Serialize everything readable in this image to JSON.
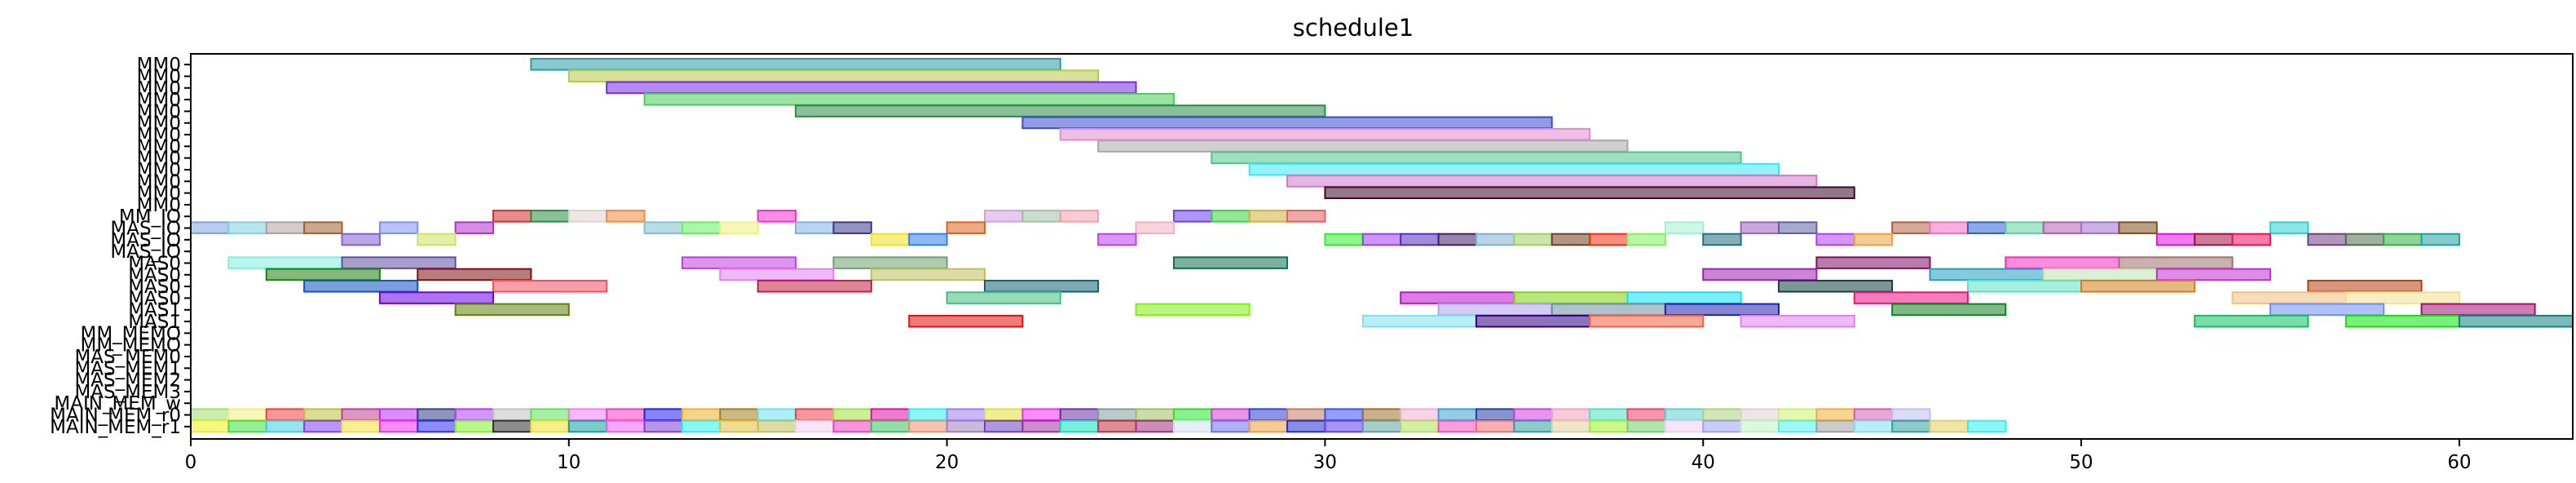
{
  "chart_data": {
    "type": "gantt",
    "title": "schedule1",
    "xlabel": "",
    "ylabel": "",
    "xlim": [
      0,
      63
    ],
    "xticks": [
      0,
      10,
      20,
      30,
      40,
      50,
      60
    ],
    "grid": false,
    "legend": "none",
    "rows": [
      "MM0",
      "MM0",
      "MM0",
      "MM0",
      "MM0",
      "MM0",
      "MM0",
      "MM0",
      "MM0",
      "MM0",
      "MM0",
      "MM0",
      "MM0",
      "MM_IO",
      "MAS_IO",
      "MAS_IO",
      "MAS_IO",
      "MAS0",
      "MAS0",
      "MAS0",
      "MAS0",
      "MAS1",
      "MAS1",
      "MM_MEMO",
      "MM_MEMO",
      "MAS_MEM0",
      "MAS_MEM1",
      "MAS_MEM2",
      "MAS_MEM3",
      "MAIN_MEM_w",
      "MAIN_MEM_r0",
      "MAIN_MEM_r1"
    ],
    "bars": [
      {
        "row": 0,
        "start": 9,
        "end": 23,
        "color": "#2a9aa6"
      },
      {
        "row": 1,
        "start": 10,
        "end": 24,
        "color": "#b8c84a"
      },
      {
        "row": 2,
        "start": 11,
        "end": 25,
        "color": "#7a2be0"
      },
      {
        "row": 3,
        "start": 12,
        "end": 26,
        "color": "#4ccc5c"
      },
      {
        "row": 4,
        "start": 16,
        "end": 30,
        "color": "#2a8a46"
      },
      {
        "row": 5,
        "start": 22,
        "end": 36,
        "color": "#3a4acc"
      },
      {
        "row": 6,
        "start": 23,
        "end": 37,
        "color": "#e08ad0"
      },
      {
        "row": 7,
        "start": 24,
        "end": 38,
        "color": "#a8a8a8"
      },
      {
        "row": 8,
        "start": 27,
        "end": 41,
        "color": "#4cc48a"
      },
      {
        "row": 9,
        "start": 28,
        "end": 42,
        "color": "#3ae8f0"
      },
      {
        "row": 10,
        "start": 29,
        "end": 43,
        "color": "#d07ac8"
      },
      {
        "row": 11,
        "start": 30,
        "end": 44,
        "color": "#3a0a2a"
      },
      {
        "row": 13,
        "start": 8,
        "end": 9,
        "color": "#d03030"
      },
      {
        "row": 13,
        "start": 9,
        "end": 10,
        "color": "#2a8a46"
      },
      {
        "row": 13,
        "start": 10,
        "end": 11,
        "color": "#e0d0d0"
      },
      {
        "row": 13,
        "start": 11,
        "end": 12,
        "color": "#f08a40"
      },
      {
        "row": 13,
        "start": 15,
        "end": 16,
        "color": "#f030d0"
      },
      {
        "row": 13,
        "start": 21,
        "end": 22,
        "color": "#d0a0e0"
      },
      {
        "row": 13,
        "start": 22,
        "end": 23,
        "color": "#a0c0a0"
      },
      {
        "row": 13,
        "start": 23,
        "end": 24,
        "color": "#f0a0b0"
      },
      {
        "row": 13,
        "start": 26,
        "end": 27,
        "color": "#6a40f0"
      },
      {
        "row": 13,
        "start": 27,
        "end": 28,
        "color": "#40d040"
      },
      {
        "row": 13,
        "start": 28,
        "end": 29,
        "color": "#d0b040"
      },
      {
        "row": 13,
        "start": 29,
        "end": 30,
        "color": "#e06060"
      },
      {
        "row": 14,
        "start": 0,
        "end": 1,
        "color": "#80a0e0"
      },
      {
        "row": 14,
        "start": 1,
        "end": 2,
        "color": "#80d0e0"
      },
      {
        "row": 14,
        "start": 2,
        "end": 3,
        "color": "#b0a0a0"
      },
      {
        "row": 14,
        "start": 3,
        "end": 4,
        "color": "#a06030"
      },
      {
        "row": 14,
        "start": 5,
        "end": 6,
        "color": "#8090f0"
      },
      {
        "row": 14,
        "start": 7,
        "end": 8,
        "color": "#b030d0"
      },
      {
        "row": 14,
        "start": 12,
        "end": 13,
        "color": "#80c0d0"
      },
      {
        "row": 14,
        "start": 13,
        "end": 14,
        "color": "#60f060"
      },
      {
        "row": 14,
        "start": 14,
        "end": 15,
        "color": "#f0f080"
      },
      {
        "row": 14,
        "start": 16,
        "end": 17,
        "color": "#80b0e0"
      },
      {
        "row": 14,
        "start": 17,
        "end": 18,
        "color": "#3a3a8a"
      },
      {
        "row": 14,
        "start": 20,
        "end": 21,
        "color": "#e06020"
      },
      {
        "row": 14,
        "start": 25,
        "end": 26,
        "color": "#f0b0c0"
      },
      {
        "row": 14,
        "start": 39,
        "end": 40,
        "color": "#a0f0d0"
      },
      {
        "row": 14,
        "start": 41,
        "end": 42,
        "color": "#a060c0"
      },
      {
        "row": 14,
        "start": 42,
        "end": 43,
        "color": "#6060a0"
      },
      {
        "row": 14,
        "start": 45,
        "end": 46,
        "color": "#b06040"
      },
      {
        "row": 14,
        "start": 46,
        "end": 47,
        "color": "#f070c0"
      },
      {
        "row": 14,
        "start": 47,
        "end": 48,
        "color": "#3060d0"
      },
      {
        "row": 14,
        "start": 48,
        "end": 49,
        "color": "#60d0a0"
      },
      {
        "row": 14,
        "start": 49,
        "end": 50,
        "color": "#b060b0"
      },
      {
        "row": 14,
        "start": 50,
        "end": 51,
        "color": "#a070d0"
      },
      {
        "row": 14,
        "start": 51,
        "end": 52,
        "color": "#805020"
      },
      {
        "row": 14,
        "start": 55,
        "end": 56,
        "color": "#30d0d0"
      },
      {
        "row": 15,
        "start": 4,
        "end": 5,
        "color": "#8060d0"
      },
      {
        "row": 15,
        "start": 6,
        "end": 7,
        "color": "#d0e060"
      },
      {
        "row": 15,
        "start": 18,
        "end": 19,
        "color": "#f0e020"
      },
      {
        "row": 15,
        "start": 19,
        "end": 20,
        "color": "#3080f0"
      },
      {
        "row": 15,
        "start": 24,
        "end": 25,
        "color": "#c040f0"
      },
      {
        "row": 15,
        "start": 30,
        "end": 31,
        "color": "#30f030"
      },
      {
        "row": 15,
        "start": 31,
        "end": 32,
        "color": "#a040f0"
      },
      {
        "row": 15,
        "start": 32,
        "end": 33,
        "color": "#5030c0"
      },
      {
        "row": 15,
        "start": 33,
        "end": 34,
        "color": "#402060"
      },
      {
        "row": 15,
        "start": 34,
        "end": 35,
        "color": "#80b0d0"
      },
      {
        "row": 15,
        "start": 35,
        "end": 36,
        "color": "#a0d060"
      },
      {
        "row": 15,
        "start": 36,
        "end": 37,
        "color": "#704020"
      },
      {
        "row": 15,
        "start": 37,
        "end": 38,
        "color": "#f03010"
      },
      {
        "row": 15,
        "start": 38,
        "end": 39,
        "color": "#80f060"
      },
      {
        "row": 15,
        "start": 40,
        "end": 41,
        "color": "#207080"
      },
      {
        "row": 15,
        "start": 43,
        "end": 44,
        "color": "#b040f0"
      },
      {
        "row": 15,
        "start": 44,
        "end": 45,
        "color": "#f0a040"
      },
      {
        "row": 15,
        "start": 52,
        "end": 53,
        "color": "#e010e0"
      },
      {
        "row": 15,
        "start": 53,
        "end": 54,
        "color": "#a01040"
      },
      {
        "row": 15,
        "start": 54,
        "end": 55,
        "color": "#f01060"
      },
      {
        "row": 15,
        "start": 56,
        "end": 57,
        "color": "#704080"
      },
      {
        "row": 15,
        "start": 57,
        "end": 58,
        "color": "#507050"
      },
      {
        "row": 15,
        "start": 58,
        "end": 59,
        "color": "#30b040"
      },
      {
        "row": 15,
        "start": 59,
        "end": 60,
        "color": "#20a0a0"
      },
      {
        "row": 17,
        "start": 1,
        "end": 4,
        "color": "#80f0e0"
      },
      {
        "row": 17,
        "start": 4,
        "end": 7,
        "color": "#6050a0"
      },
      {
        "row": 17,
        "start": 13,
        "end": 16,
        "color": "#c040e0"
      },
      {
        "row": 17,
        "start": 17,
        "end": 20,
        "color": "#70a070"
      },
      {
        "row": 17,
        "start": 26,
        "end": 29,
        "color": "#107050"
      },
      {
        "row": 17,
        "start": 43,
        "end": 46,
        "color": "#801060"
      },
      {
        "row": 17,
        "start": 48,
        "end": 51,
        "color": "#f030c0"
      },
      {
        "row": 17,
        "start": 51,
        "end": 54,
        "color": "#a07070"
      },
      {
        "row": 18,
        "start": 2,
        "end": 5,
        "color": "#208010"
      },
      {
        "row": 18,
        "start": 6,
        "end": 9,
        "color": "#801010"
      },
      {
        "row": 18,
        "start": 14,
        "end": 17,
        "color": "#e080f0"
      },
      {
        "row": 18,
        "start": 18,
        "end": 21,
        "color": "#c0c060"
      },
      {
        "row": 18,
        "start": 40,
        "end": 43,
        "color": "#a020b0"
      },
      {
        "row": 18,
        "start": 46,
        "end": 49,
        "color": "#20a0c0"
      },
      {
        "row": 18,
        "start": 49,
        "end": 52,
        "color": "#c0e0b0"
      },
      {
        "row": 18,
        "start": 52,
        "end": 55,
        "color": "#c030d0"
      },
      {
        "row": 19,
        "start": 3,
        "end": 6,
        "color": "#1050c0"
      },
      {
        "row": 19,
        "start": 8,
        "end": 11,
        "color": "#f05060"
      },
      {
        "row": 19,
        "start": 15,
        "end": 18,
        "color": "#c02040"
      },
      {
        "row": 19,
        "start": 21,
        "end": 24,
        "color": "#106070"
      },
      {
        "row": 19,
        "start": 42,
        "end": 45,
        "color": "#104040"
      },
      {
        "row": 19,
        "start": 47,
        "end": 50,
        "color": "#60e0c0"
      },
      {
        "row": 19,
        "start": 50,
        "end": 53,
        "color": "#d08020"
      },
      {
        "row": 19,
        "start": 56,
        "end": 59,
        "color": "#b04010"
      },
      {
        "row": 20,
        "start": 5,
        "end": 8,
        "color": "#7000e0"
      },
      {
        "row": 20,
        "start": 20,
        "end": 23,
        "color": "#40c080"
      },
      {
        "row": 20,
        "start": 32,
        "end": 35,
        "color": "#c010d0"
      },
      {
        "row": 20,
        "start": 35,
        "end": 38,
        "color": "#80d010"
      },
      {
        "row": 20,
        "start": 38,
        "end": 41,
        "color": "#10e0f0"
      },
      {
        "row": 20,
        "start": 44,
        "end": 47,
        "color": "#f01080"
      },
      {
        "row": 20,
        "start": 54,
        "end": 57,
        "color": "#f0c080"
      },
      {
        "row": 20,
        "start": 57,
        "end": 60,
        "color": "#f0e090"
      },
      {
        "row": 21,
        "start": 7,
        "end": 10,
        "color": "#608010"
      },
      {
        "row": 21,
        "start": 25,
        "end": 28,
        "color": "#80f010"
      },
      {
        "row": 21,
        "start": 33,
        "end": 36,
        "color": "#b0a0f0"
      },
      {
        "row": 21,
        "start": 36,
        "end": 39,
        "color": "#7090a0"
      },
      {
        "row": 21,
        "start": 39,
        "end": 42,
        "color": "#2020b0"
      },
      {
        "row": 21,
        "start": 45,
        "end": 48,
        "color": "#108020"
      },
      {
        "row": 21,
        "start": 55,
        "end": 58,
        "color": "#7090f0"
      },
      {
        "row": 21,
        "start": 59,
        "end": 62,
        "color": "#a01070"
      },
      {
        "row": 22,
        "start": 19,
        "end": 22,
        "color": "#e01010"
      },
      {
        "row": 22,
        "start": 31,
        "end": 34,
        "color": "#80e0f0"
      },
      {
        "row": 22,
        "start": 34,
        "end": 37,
        "color": "#300080"
      },
      {
        "row": 22,
        "start": 37,
        "end": 40,
        "color": "#f06040"
      },
      {
        "row": 22,
        "start": 41,
        "end": 44,
        "color": "#e080f0"
      },
      {
        "row": 22,
        "start": 53,
        "end": 56,
        "color": "#10c060"
      },
      {
        "row": 22,
        "start": 57,
        "end": 60,
        "color": "#10e010"
      },
      {
        "row": 22,
        "start": 60,
        "end": 63,
        "color": "#108080"
      }
    ],
    "main_mem_colors_r0": [
      "#a0e070",
      "#f0f080",
      "#f04040",
      "#c0c040",
      "#c04090",
      "#c030f0",
      "#304080",
      "#b040f0",
      "#c0c0c0",
      "#60e060",
      "#f080f0",
      "#f040c0",
      "#2020f0",
      "#f0b030",
      "#a08020",
      "#70e0f0",
      "#f04050",
      "#a0e040",
      "#e010a0",
      "#30f0f0",
      "#a080f0",
      "#e0e040",
      "#f030f0",
      "#7030a0",
      "#80a0a0",
      "#a0c060",
      "#30e030",
      "#d040d0",
      "#3040d0",
      "#c08060",
      "#4050f0",
      "#a07030",
      "#f0b0d0",
      "#40a0d0",
      "#2040a0",
      "#d040e0",
      "#f0a0c0",
      "#50e0c0",
      "#f04070",
      "#60d0d0",
      "#b0d080",
      "#e0d0d0",
      "#d0f070",
      "#f0b040",
      "#d060b0",
      "#c0c0f0"
    ],
    "main_mem_colors_r1": [
      "#f0f020",
      "#40e040",
      "#40d0e0",
      "#8040f0",
      "#f0e040",
      "#f030f0",
      "#3030f0",
      "#80f030",
      "#303030",
      "#f0e030",
      "#10a0a0",
      "#f060f0",
      "#8040d0",
      "#30f0f0",
      "#e0c040",
      "#c0c060",
      "#f0d0f0",
      "#f040c0",
      "#40c060",
      "#f09070",
      "#a080c0",
      "#7040c0",
      "#a030a0",
      "#10e0c0",
      "#c03040",
      "#a03080",
      "#d0e0f0",
      "#7070f0",
      "#f0a040",
      "#2030d0",
      "#6040f0",
      "#60a0a0",
      "#b0e060",
      "#f050c0",
      "#f07070",
      "#30a0a0",
      "#e0d0a0",
      "#a0f030",
      "#70d070",
      "#f0d0f0",
      "#a0a0f0",
      "#c0f0c0",
      "#50f0f0",
      "#a0a0a0",
      "#80e0f0",
      "#30a0a0",
      "#e0d060",
      "#30f0f0"
    ]
  }
}
